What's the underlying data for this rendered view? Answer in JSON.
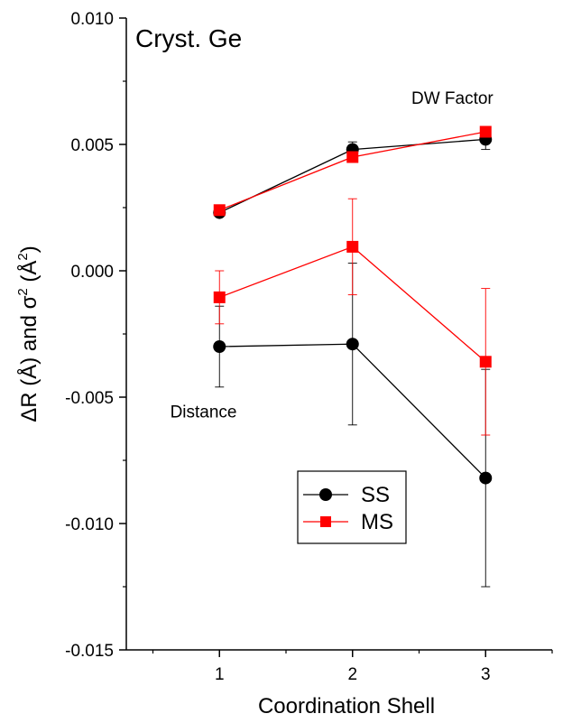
{
  "chart_data": {
    "type": "line",
    "title": "",
    "annotation_title": "Cryst. Ge",
    "xlabel": "Coordination Shell",
    "ylabel_main": "ΔR (Å) and σ",
    "ylabel_sup": "2",
    "ylabel_unit_open": " (Å",
    "ylabel_unit_sup": "2",
    "ylabel_unit_close": ")",
    "xlim": [
      0.3,
      3.5
    ],
    "ylim": [
      -0.015,
      0.01
    ],
    "x_ticks": [
      1,
      2,
      3
    ],
    "x_tick_labels": [
      "1",
      "2",
      "3"
    ],
    "y_ticks": [
      -0.015,
      -0.01,
      -0.005,
      0.0,
      0.005,
      0.01
    ],
    "y_tick_labels": [
      "-0.015",
      "-0.010",
      "-0.005",
      "0.000",
      "0.005",
      "0.010"
    ],
    "annotations": [
      {
        "text": "DW Factor",
        "x": 2.75,
        "y": 0.0066
      },
      {
        "text": "Distance",
        "x": 0.88,
        "y": -0.0058
      }
    ],
    "legend": {
      "placement": "lower-center"
    },
    "series": [
      {
        "name": "SS",
        "color": "#000000",
        "marker": "circle",
        "group": "DW Factor",
        "x": [
          1,
          2,
          3
        ],
        "y": [
          0.0023,
          0.0048,
          0.0052
        ],
        "err": [
          0.0001,
          0.0003,
          0.0004
        ]
      },
      {
        "name": "MS",
        "color": "#ff0000",
        "marker": "square",
        "group": "DW Factor",
        "x": [
          1,
          2,
          3
        ],
        "y": [
          0.0024,
          0.0045,
          0.0055
        ],
        "err": [
          0.0001,
          0.0002,
          0.0002
        ]
      },
      {
        "name": "SS",
        "color": "#000000",
        "marker": "circle",
        "group": "Distance",
        "x": [
          1,
          2,
          3
        ],
        "y": [
          -0.003,
          -0.0029,
          -0.0082
        ],
        "err": [
          0.0016,
          0.0032,
          0.0043
        ]
      },
      {
        "name": "MS",
        "color": "#ff0000",
        "marker": "square",
        "group": "Distance",
        "x": [
          1,
          2,
          3
        ],
        "y": [
          -0.00105,
          0.00095,
          -0.0036
        ],
        "err": [
          0.00105,
          0.0019,
          0.0029
        ]
      }
    ]
  }
}
